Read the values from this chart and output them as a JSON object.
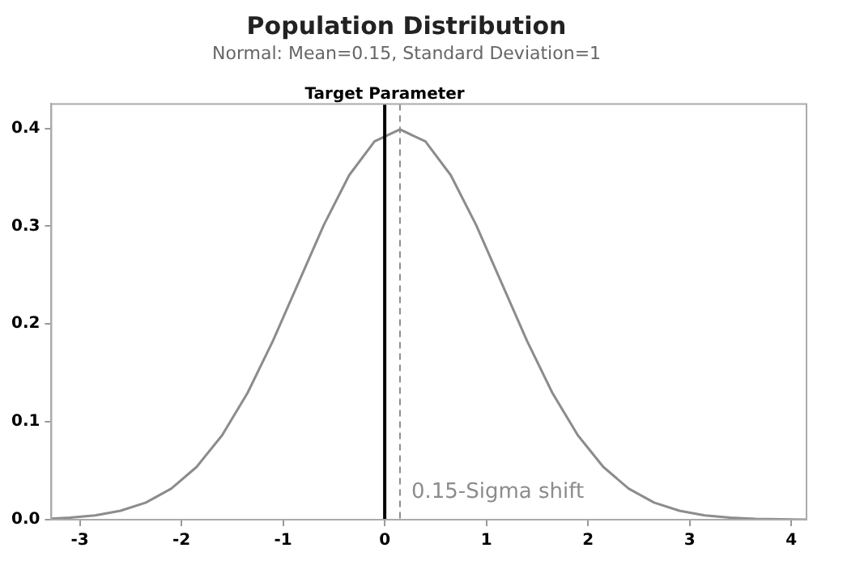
{
  "chart_data": {
    "type": "line",
    "title": "Population Distribution",
    "subtitle": "Normal: Mean=0.15, Standard Deviation=1",
    "x": [
      -3.28,
      -3.1,
      -2.85,
      -2.6,
      -2.35,
      -2.1,
      -1.85,
      -1.6,
      -1.35,
      -1.1,
      -0.85,
      -0.6,
      -0.35,
      -0.1,
      0.15,
      0.4,
      0.65,
      0.9,
      1.15,
      1.4,
      1.65,
      1.9,
      2.15,
      2.4,
      2.65,
      2.9,
      3.15,
      3.4,
      3.65,
      3.9,
      4.15
    ],
    "series": [
      {
        "color": "#8c8c8c",
        "values": [
          0.0011,
          0.002,
          0.0044,
          0.0091,
          0.0175,
          0.0317,
          0.054,
          0.0863,
          0.1295,
          0.1827,
          0.242,
          0.3011,
          0.3521,
          0.3867,
          0.3989,
          0.3867,
          0.3521,
          0.3011,
          0.242,
          0.1827,
          0.1295,
          0.0863,
          0.054,
          0.0317,
          0.0175,
          0.0091,
          0.0044,
          0.002,
          0.0009,
          0.0004,
          0.0001
        ]
      }
    ],
    "xlim": [
      -3.28,
      4.15
    ],
    "xticks": [
      -3,
      -2,
      -1,
      0,
      1,
      2,
      3,
      4
    ],
    "ylim": [
      0,
      0.425
    ],
    "yticks": [
      {
        "value": 0,
        "label": "0.0"
      },
      {
        "value": 0.1,
        "label": "0.1"
      },
      {
        "value": 0.2,
        "label": "0.2"
      },
      {
        "value": 0.3,
        "label": "0.3"
      },
      {
        "value": 0.4,
        "label": "0.4"
      }
    ],
    "ref_lines": [
      {
        "axis": "x",
        "value": 0,
        "label": "Target Parameter",
        "color": "#000000",
        "line_style": "solid"
      },
      {
        "axis": "x",
        "value": 0.15,
        "label": "0.15-Sigma shift",
        "color": "#8c8c8c",
        "line_style": "dashed"
      }
    ],
    "grid": false,
    "legend": false,
    "marker": "none",
    "line_style": "solid"
  }
}
